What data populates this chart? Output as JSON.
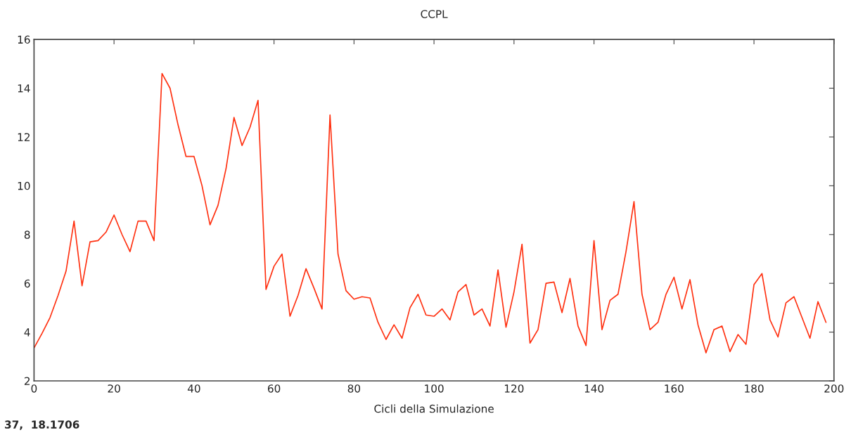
{
  "chart_data": {
    "type": "line",
    "title": "CCPL",
    "xlabel": "Cicli della Simulazione",
    "x": [
      0,
      2,
      4,
      6,
      8,
      10,
      12,
      14,
      16,
      18,
      20,
      22,
      24,
      26,
      28,
      30,
      32,
      34,
      36,
      38,
      40,
      42,
      44,
      46,
      48,
      50,
      52,
      54,
      56,
      58,
      60,
      62,
      64,
      66,
      68,
      70,
      72,
      74,
      76,
      78,
      80,
      82,
      84,
      86,
      88,
      90,
      92,
      94,
      96,
      98,
      100,
      102,
      104,
      106,
      108,
      110,
      112,
      114,
      116,
      118,
      120,
      122,
      124,
      126,
      128,
      130,
      132,
      134,
      136,
      138,
      140,
      142,
      144,
      146,
      148,
      150,
      152,
      154,
      156,
      158,
      160,
      162,
      164,
      166,
      168,
      170,
      172,
      174,
      176,
      178,
      180,
      182,
      184,
      186,
      188,
      190,
      192,
      194,
      196,
      198
    ],
    "series": [
      {
        "color": "#ff3010",
        "values": [
          3.35,
          3.95,
          4.6,
          5.5,
          6.5,
          8.55,
          5.9,
          7.7,
          7.75,
          8.1,
          8.8,
          8.0,
          7.3,
          8.55,
          8.55,
          7.75,
          14.6,
          14.0,
          12.5,
          11.2,
          11.2,
          10.0,
          8.4,
          9.2,
          10.7,
          12.8,
          11.65,
          12.4,
          13.5,
          5.75,
          6.7,
          7.2,
          4.65,
          5.5,
          6.6,
          5.8,
          4.95,
          12.9,
          7.2,
          5.7,
          5.35,
          5.45,
          5.4,
          4.4,
          3.7,
          4.3,
          3.75,
          5.0,
          5.55,
          4.7,
          4.65,
          4.95,
          4.5,
          5.65,
          5.95,
          4.7,
          4.95,
          4.25,
          6.55,
          4.2,
          5.65,
          7.6,
          3.55,
          4.1,
          6.0,
          6.05,
          4.8,
          6.2,
          4.25,
          3.45,
          7.75,
          4.1,
          5.3,
          5.55,
          7.3,
          9.35,
          5.55,
          4.1,
          4.4,
          5.55,
          6.25,
          4.95,
          6.15,
          4.3,
          3.15,
          4.1,
          4.25,
          3.2,
          3.9,
          3.5,
          5.95,
          6.4,
          4.5,
          3.8,
          5.2,
          5.45,
          4.6,
          3.75,
          5.25,
          4.4
        ]
      }
    ],
    "xlim": [
      0,
      200
    ],
    "xticks": [
      0,
      20,
      40,
      60,
      80,
      100,
      120,
      140,
      160,
      180,
      200
    ],
    "ylim": [
      2,
      16
    ],
    "yticks": [
      2,
      4,
      6,
      8,
      10,
      12,
      14,
      16
    ],
    "grid": false,
    "legend": false,
    "annotations": [
      "37,  18.1706"
    ]
  }
}
